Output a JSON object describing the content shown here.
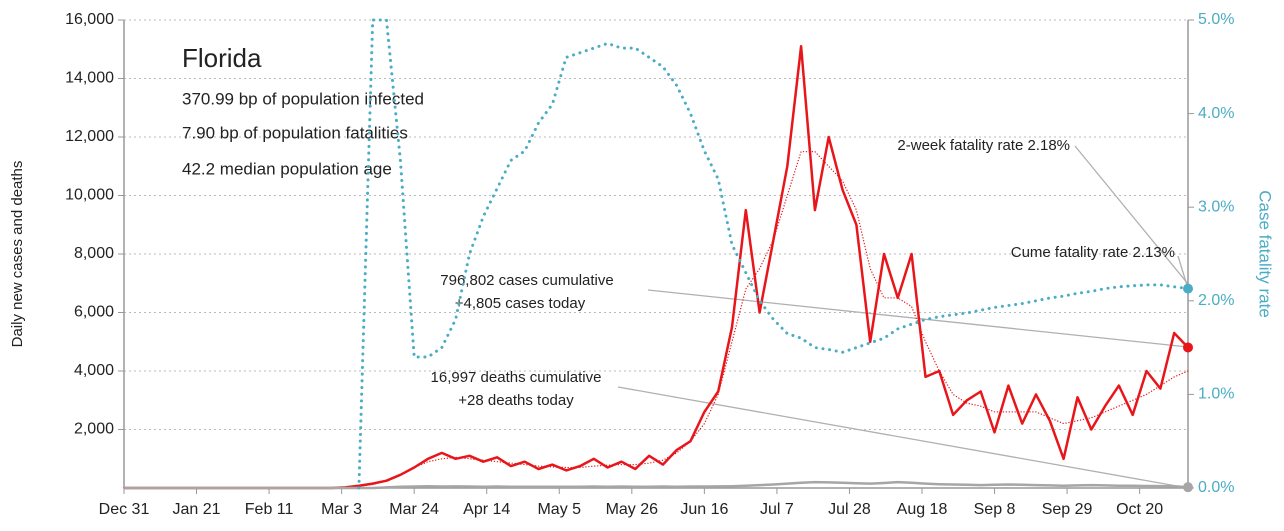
{
  "chart_data": {
    "type": "line",
    "title": "Florida",
    "subtitle": [
      "370.99 bp of population infected",
      "7.90 bp of population fatalities",
      "42.2 median population age"
    ],
    "annotations": [
      "2-week fatality rate 2.18%",
      "Cume fatality rate 2.13%",
      "796,802 cases cumulative",
      "+4,805 cases today",
      "16,997 deaths cumulative",
      "+28 deaths today"
    ],
    "ylabel": "Daily new cases and deaths",
    "y2label": "Case fatality rate",
    "x": [
      0,
      4,
      8,
      12,
      16,
      20,
      24,
      28,
      32,
      36,
      40,
      44,
      48,
      52,
      56,
      60,
      64,
      68,
      72,
      76,
      80,
      84,
      88,
      92,
      96,
      100,
      104,
      108,
      112,
      116,
      120,
      124,
      128,
      132,
      136,
      140,
      144,
      148,
      152,
      156,
      160,
      164,
      168,
      172,
      176,
      180,
      184,
      188,
      192,
      196,
      200,
      204,
      208,
      212,
      216,
      220,
      224,
      228,
      232,
      236,
      240,
      244,
      248,
      252,
      256,
      260,
      264,
      268,
      272,
      276,
      280,
      284,
      288,
      292,
      296,
      300,
      304,
      308
    ],
    "xlim": [
      0,
      308
    ],
    "xticks": [
      {
        "value": 0,
        "label": "Dec 31"
      },
      {
        "value": 21,
        "label": "Jan 21"
      },
      {
        "value": 42,
        "label": "Feb 11"
      },
      {
        "value": 63,
        "label": "Mar 3"
      },
      {
        "value": 84,
        "label": "Mar 24"
      },
      {
        "value": 105,
        "label": "Apr 14"
      },
      {
        "value": 126,
        "label": "May 5"
      },
      {
        "value": 147,
        "label": "May 26"
      },
      {
        "value": 168,
        "label": "Jun 16"
      },
      {
        "value": 189,
        "label": "Jul 7"
      },
      {
        "value": 210,
        "label": "Jul 28"
      },
      {
        "value": 231,
        "label": "Aug 18"
      },
      {
        "value": 252,
        "label": "Sep 8"
      },
      {
        "value": 273,
        "label": "Sep 29"
      },
      {
        "value": 294,
        "label": "Oct 20"
      }
    ],
    "ylim": [
      0,
      16000
    ],
    "yticks": [
      {
        "value": 2000,
        "label": "2,000"
      },
      {
        "value": 4000,
        "label": "4,000"
      },
      {
        "value": 6000,
        "label": "6,000"
      },
      {
        "value": 8000,
        "label": "8,000"
      },
      {
        "value": 10000,
        "label": "10,000"
      },
      {
        "value": 12000,
        "label": "12,000"
      },
      {
        "value": 14000,
        "label": "14,000"
      },
      {
        "value": 16000,
        "label": "16,000"
      }
    ],
    "y2lim": [
      0,
      5
    ],
    "y2ticks": [
      {
        "value": 0,
        "label": "0.0%"
      },
      {
        "value": 1,
        "label": "1.0%"
      },
      {
        "value": 2,
        "label": "2.0%"
      },
      {
        "value": 3,
        "label": "3.0%"
      },
      {
        "value": 4,
        "label": "4.0%"
      },
      {
        "value": 5,
        "label": "5.0%"
      }
    ],
    "grid": true,
    "series": [
      {
        "color": "#e8161b",
        "width": 2.5,
        "dotted": false,
        "end_marker": true,
        "values": [
          0,
          0,
          0,
          0,
          0,
          0,
          0,
          0,
          0,
          0,
          0,
          0,
          0,
          0,
          0,
          0,
          20,
          80,
          150,
          250,
          450,
          700,
          1000,
          1200,
          1000,
          1100,
          900,
          1050,
          750,
          900,
          650,
          800,
          600,
          750,
          1000,
          700,
          900,
          650,
          1100,
          800,
          1300,
          1600,
          2600,
          3300,
          5500,
          9500,
          6000,
          8500,
          11000,
          15100,
          9500,
          12000,
          10200,
          9000,
          5000,
          8000,
          6500,
          8000,
          3800,
          4000,
          2500,
          3000,
          3300,
          1900,
          3500,
          2200,
          3200,
          2300,
          1000,
          3100,
          2000,
          2800,
          3500,
          2500,
          4000,
          3400,
          5300,
          4805
        ]
      },
      {
        "color": "#e8161b",
        "width": 1.3,
        "dotted": true,
        "end_marker": false,
        "values": [
          0,
          0,
          0,
          0,
          0,
          0,
          0,
          0,
          0,
          0,
          0,
          0,
          0,
          0,
          0,
          0,
          10,
          50,
          120,
          250,
          450,
          700,
          900,
          1000,
          1050,
          1000,
          950,
          900,
          850,
          800,
          750,
          720,
          700,
          700,
          750,
          780,
          800,
          800,
          850,
          950,
          1200,
          1600,
          2200,
          3200,
          5000,
          6800,
          7500,
          8500,
          10000,
          11500,
          11500,
          11000,
          10500,
          9500,
          7500,
          6500,
          6500,
          6200,
          5000,
          4000,
          3200,
          2900,
          2800,
          2600,
          2600,
          2600,
          2600,
          2400,
          2200,
          2300,
          2400,
          2600,
          2800,
          3000,
          3200,
          3500,
          3800,
          4000
        ]
      },
      {
        "color": "#a6a6a6",
        "width": 2.5,
        "dotted": false,
        "end_marker": true,
        "values": [
          0,
          0,
          0,
          0,
          0,
          0,
          0,
          0,
          0,
          0,
          0,
          0,
          0,
          0,
          0,
          0,
          0,
          0,
          0,
          20,
          40,
          50,
          60,
          50,
          55,
          50,
          45,
          50,
          40,
          45,
          40,
          45,
          40,
          45,
          50,
          45,
          50,
          40,
          45,
          50,
          45,
          50,
          50,
          55,
          60,
          80,
          100,
          120,
          150,
          180,
          200,
          190,
          180,
          160,
          150,
          170,
          200,
          180,
          150,
          130,
          120,
          110,
          100,
          110,
          120,
          110,
          100,
          90,
          80,
          90,
          100,
          90,
          80,
          75,
          70,
          65,
          60,
          28
        ]
      },
      {
        "color": "#4bacc6",
        "width": 3,
        "dotted": true,
        "end_marker": true,
        "axis": "y2",
        "values": [
          null,
          null,
          null,
          null,
          null,
          null,
          null,
          null,
          null,
          null,
          null,
          null,
          null,
          null,
          null,
          null,
          null,
          0,
          5,
          5,
          3.5,
          1.4,
          1.4,
          1.5,
          1.8,
          2.5,
          2.9,
          3.2,
          3.5,
          3.6,
          3.9,
          4.1,
          4.6,
          4.65,
          4.7,
          4.75,
          4.7,
          4.7,
          4.6,
          4.5,
          4.3,
          4.0,
          3.6,
          3.3,
          2.6,
          2.3,
          2.0,
          1.8,
          1.65,
          1.6,
          1.5,
          1.48,
          1.45,
          1.5,
          1.55,
          1.6,
          1.7,
          1.75,
          1.8,
          1.83,
          1.85,
          1.87,
          1.9,
          1.93,
          1.95,
          1.97,
          2.0,
          2.03,
          2.05,
          2.08,
          2.1,
          2.13,
          2.15,
          2.16,
          2.17,
          2.17,
          2.15,
          2.13
        ]
      }
    ]
  }
}
